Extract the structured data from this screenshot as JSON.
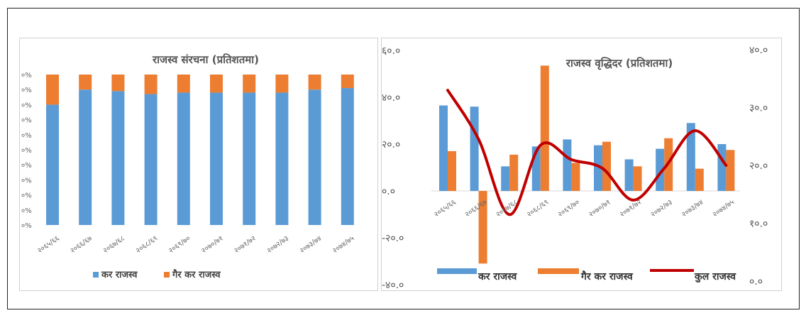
{
  "colors": {
    "tax": "#5b9bd5",
    "nontax": "#ed7d31",
    "total": "#c00000"
  },
  "chart_data": [
    {
      "type": "bar",
      "stacked": true,
      "title": "राजस्व संरचना (प्रतिशतमा)",
      "categories": [
        "२०६५/६६",
        "२०६६/६७",
        "२०६७/६८",
        "२०६८/६९",
        "२०६९/७०",
        "२०७०/७१",
        "२०७१/७२",
        "२०७२/७३",
        "२०७३/७४",
        "२०७४/७५"
      ],
      "y_tick_labels": [
        "०%",
        "०%",
        "०%",
        "०%",
        "०%",
        "०%",
        "०%",
        "०%",
        "०%",
        "०%",
        "०%"
      ],
      "ylim": [
        0,
        100
      ],
      "series": [
        {
          "name": "कर राजस्व",
          "values": [
            80,
            90,
            89,
            87,
            88,
            88,
            88,
            88,
            90,
            91
          ]
        },
        {
          "name": "गैर कर राजस्व",
          "values": [
            20,
            10,
            11,
            13,
            12,
            12,
            12,
            12,
            10,
            9
          ]
        }
      ],
      "legend_position": "bottom"
    },
    {
      "type": "bar+line",
      "title": "राजस्व वृद्धिदर (प्रतिशतमा)",
      "categories": [
        "२०६५/६६",
        "२०६६/६७",
        "२०६७/६८",
        "२०६८/६९",
        "२०६९/७०",
        "२०७०/७१",
        "२०७१/७२",
        "२०७२/७३",
        "२०७३/७४",
        "२०७४/७५"
      ],
      "ylim_left": [
        -40,
        60
      ],
      "ylim_right": [
        0,
        40
      ],
      "left_ticks": [
        "६०.०",
        "४०.०",
        "२०.०",
        "०.०",
        "-२०.०",
        "-४०.०"
      ],
      "right_ticks": [
        "४०.०",
        "३०.०",
        "२०.०",
        "१०.०",
        "०.०"
      ],
      "series": [
        {
          "name": "कर राजस्व",
          "kind": "bar",
          "axis": "left",
          "values": [
            36.5,
            36,
            10.5,
            19,
            22,
            19.5,
            13.5,
            18,
            29,
            20
          ]
        },
        {
          "name": "गैर कर राजस्व",
          "kind": "bar",
          "axis": "left",
          "values": [
            17,
            -31,
            15.5,
            53.5,
            12,
            21,
            10.5,
            22.5,
            9.5,
            17.5
          ]
        },
        {
          "name": "कुल राजस्व",
          "kind": "line",
          "axis": "right",
          "values": [
            33,
            24.5,
            11.5,
            23.5,
            21,
            19.5,
            14,
            19.5,
            26,
            20
          ]
        }
      ],
      "legend_position": "bottom"
    }
  ]
}
